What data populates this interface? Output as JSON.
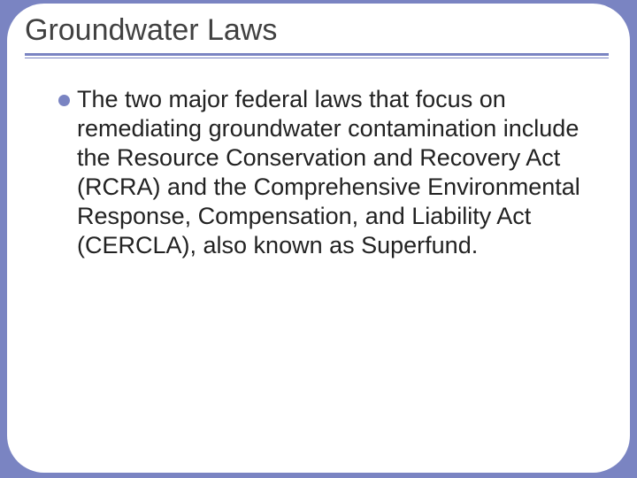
{
  "slide": {
    "background_color": "#7a84c2",
    "frame_color": "#ffffff",
    "frame_border_radius": 42,
    "title": {
      "text": "Groundwater Laws",
      "color": "#414141",
      "fontsize": 34,
      "underline_color": "#7a84c2"
    },
    "body": {
      "bullets": [
        {
          "text": "The two major federal laws that focus on remediating groundwater contamination include the Resource Conservation and Recovery Act (RCRA) and the Comprehensive Environmental Response, Compensation, and Liability Act (CERCLA), also known as Superfund."
        }
      ],
      "bullet_color": "#7a84c2",
      "text_color": "#222222",
      "fontsize": 27
    }
  }
}
